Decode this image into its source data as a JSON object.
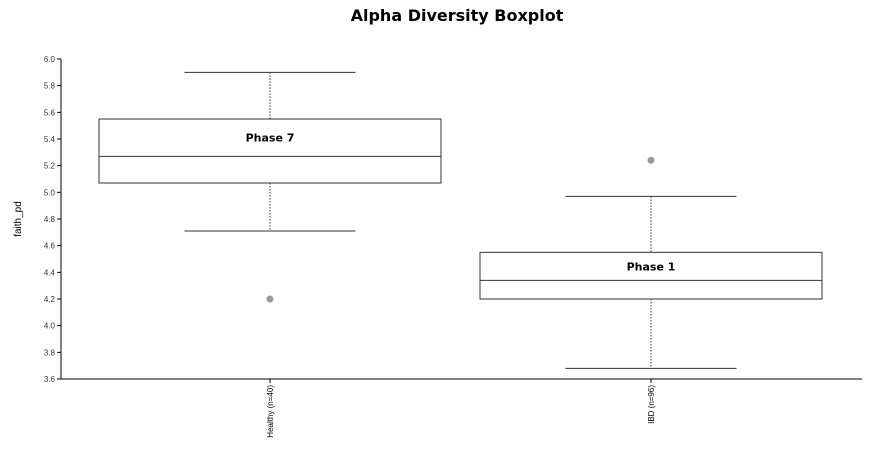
{
  "chart_data": {
    "type": "boxplot",
    "title": "Alpha Diversity Boxplot",
    "ylabel": "faith_pd",
    "ylim": [
      3.6,
      6.0
    ],
    "yticks": [
      "6.0",
      "5.8",
      "5.6",
      "5.4",
      "5.2",
      "5.0",
      "4.8",
      "4.6",
      "4.4",
      "4.2",
      "4.0",
      "3.8",
      "3.6"
    ],
    "categories": [
      "Healthy (n=40)",
      "IBD (n=96)"
    ],
    "boxes": [
      {
        "category": "Healthy (n=40)",
        "label": "Phase 7",
        "whisker_low": 4.71,
        "q1": 5.07,
        "median": 5.27,
        "q3": 5.55,
        "whisker_high": 5.9,
        "outliers": [
          4.2
        ]
      },
      {
        "category": "IBD (n=96)",
        "label": "Phase 1",
        "whisker_low": 3.68,
        "q1": 4.2,
        "median": 4.34,
        "q3": 4.55,
        "whisker_high": 4.97,
        "outliers": [
          5.24
        ]
      }
    ],
    "colors": {
      "box_stroke": "#333333",
      "box_fill": "#ffffff",
      "outlier": "#999999",
      "axis": "#000000"
    }
  }
}
